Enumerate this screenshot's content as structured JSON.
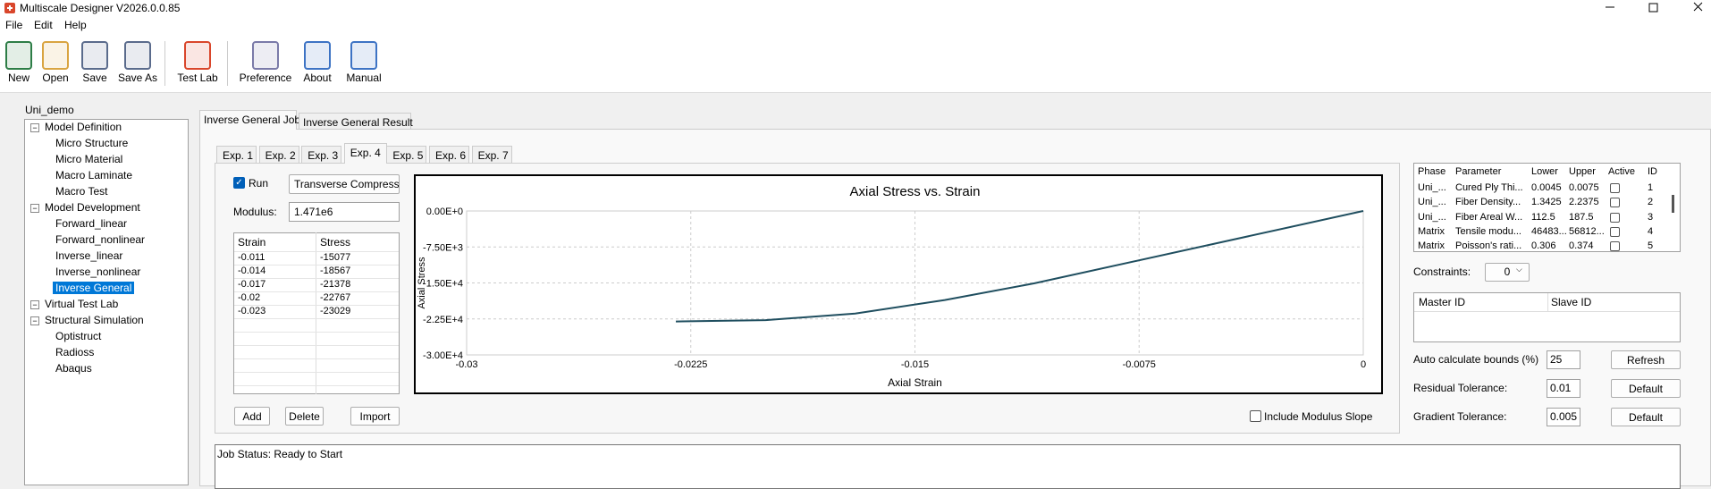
{
  "window": {
    "title": "Multiscale Designer V2026.0.0.85"
  },
  "menu": [
    "File",
    "Edit",
    "Help"
  ],
  "toolbar": [
    "New",
    "Open",
    "Save",
    "Save As",
    "Test Lab",
    "Preference",
    "About",
    "Manual"
  ],
  "tree": {
    "root": "Uni_demo",
    "groups": [
      {
        "label": "Model Definition",
        "items": [
          "Micro Structure",
          "Micro Material",
          "Macro Laminate",
          "Macro Test"
        ]
      },
      {
        "label": "Model Development",
        "items": [
          "Forward_linear",
          "Forward_nonlinear",
          "Inverse_linear",
          "Inverse_nonlinear",
          "Inverse General"
        ]
      },
      {
        "label": "Virtual Test Lab",
        "items": []
      },
      {
        "label": "Structural Simulation",
        "items": [
          "Optistruct",
          "Radioss",
          "Abaqus"
        ]
      }
    ],
    "selected": {
      "group": 1,
      "item": 4
    }
  },
  "job_tabs": {
    "labels": [
      "Inverse General Job",
      "Inverse General Result"
    ],
    "active": 0
  },
  "exp_tabs": {
    "labels": [
      "Exp. 1",
      "Exp. 2",
      "Exp. 3",
      "Exp. 4",
      "Exp. 5",
      "Exp. 6",
      "Exp. 7"
    ],
    "active": 3
  },
  "experiment": {
    "run_label": "Run",
    "run_checked": true,
    "test_type": "Transverse Compressi",
    "modulus_label": "Modulus:",
    "modulus": "1.471e6",
    "table": {
      "headers": [
        "Strain",
        "Stress"
      ],
      "rows": [
        [
          "-0.011",
          "-15077"
        ],
        [
          "-0.014",
          "-18567"
        ],
        [
          "-0.017",
          "-21378"
        ],
        [
          "-0.02",
          "-22767"
        ],
        [
          "-0.023",
          "-23029"
        ]
      ]
    },
    "buttons": [
      "Add",
      "Delete",
      "Import"
    ],
    "include_modulus_slope": {
      "label": "Include Modulus Slope",
      "checked": false
    }
  },
  "chart_data": {
    "type": "line",
    "title": "Axial Stress vs. Strain",
    "x_label": "Axial Strain",
    "y_label": "Axial Stress",
    "x": [
      -0.023,
      -0.02,
      -0.017,
      -0.014,
      -0.011,
      0
    ],
    "values": [
      -23029,
      -22767,
      -21378,
      -18567,
      -15077,
      0
    ],
    "color": "#1f4e5f",
    "xlim": [
      -0.03,
      0
    ],
    "xticks": [
      -0.03,
      -0.0225,
      -0.015,
      -0.0075,
      0
    ],
    "ylim": [
      -30000,
      0
    ],
    "yticks": [
      {
        "value": 0,
        "label": "0.00E+0"
      },
      {
        "value": -7500,
        "label": "-7.50E+3"
      },
      {
        "value": -15000,
        "label": "-1.50E+4"
      },
      {
        "value": -22500,
        "label": "-2.25E+4"
      },
      {
        "value": -30000,
        "label": "-3.00E+4"
      }
    ],
    "grid": true
  },
  "parameters": {
    "headers": [
      "Phase",
      "Parameter",
      "Lower",
      "Upper",
      "Active",
      "ID"
    ],
    "rows": [
      [
        "Uni_...",
        "Cured Ply Thi...",
        "0.0045",
        "0.0075",
        "1"
      ],
      [
        "Uni_...",
        "Fiber Density...",
        "1.3425",
        "2.2375",
        "2"
      ],
      [
        "Uni_...",
        "Fiber Areal W...",
        "112.5",
        "187.5",
        "3"
      ],
      [
        "Matrix",
        "Tensile modu...",
        "46483...",
        "56812...",
        "4"
      ],
      [
        "Matrix",
        "Poisson's rati...",
        "0.306",
        "0.374",
        "5"
      ]
    ],
    "active": [
      false,
      false,
      false,
      false,
      false
    ]
  },
  "constraints": {
    "label": "Constraints:",
    "value": "0",
    "headers": [
      "Master ID",
      "Slave ID"
    ]
  },
  "settings": [
    {
      "label": "Auto calculate bounds (%)",
      "value": "25",
      "button": "Refresh"
    },
    {
      "label": "Residual Tolerance:",
      "value": "0.01",
      "button": "Default"
    },
    {
      "label": "Gradient Tolerance:",
      "value": "0.005",
      "button": "Default"
    }
  ],
  "job_status": "Job Status: Ready to Start"
}
